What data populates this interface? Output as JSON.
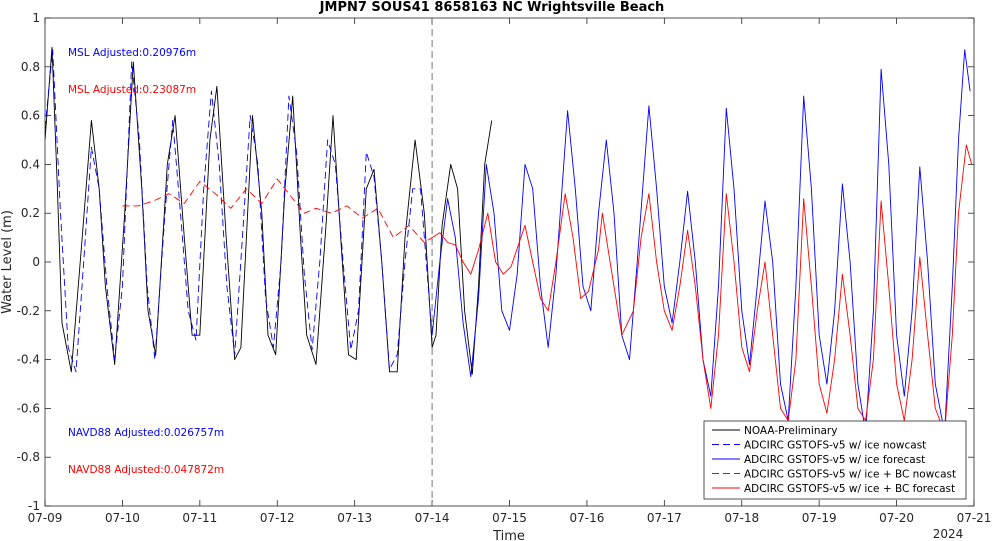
{
  "chart_data": {
    "type": "line",
    "title": "JMPN7 SOUS41 8658163 NC Wrightsville Beach",
    "xlabel": "Time",
    "ylabel": "Water Level (m)",
    "xlim": [
      0,
      12
    ],
    "ylim": [
      -1,
      1
    ],
    "x_tick_values": [
      0,
      1,
      2,
      3,
      4,
      5,
      6,
      7,
      8,
      9,
      10,
      11,
      12
    ],
    "x_tick_labels": [
      "07-09",
      "07-10",
      "07-11",
      "07-12",
      "07-13",
      "07-14",
      "07-15",
      "07-16",
      "07-17",
      "07-18",
      "07-19",
      "07-20",
      "07-21"
    ],
    "x_year_label": "2024",
    "y_ticks": [
      -1,
      -0.8,
      -0.6,
      -0.4,
      -0.2,
      0,
      0.2,
      0.4,
      0.6,
      0.8,
      1
    ],
    "y_tick_labels": [
      "-1",
      "-0.8",
      "-0.6",
      "-0.4",
      "-0.2",
      "0",
      "0.2",
      "0.4",
      "0.6",
      "0.8",
      "1"
    ],
    "nowcast_divider_x": 5,
    "annotations": [
      {
        "text": "MSL Adjusted:0.20976m",
        "color": "#0000ff"
      },
      {
        "text": "MSL Adjusted:0.23087m",
        "color": "#ff0000"
      },
      {
        "text": "NAVD88 Adjusted:0.026757m",
        "color": "#0000ff"
      },
      {
        "text": "NAVD88 Adjusted:0.047872m",
        "color": "#ff0000"
      }
    ],
    "legend_position": "bottom-right",
    "series": [
      {
        "name": "NOAA-Preliminary",
        "color": "#000000",
        "dash": "solid",
        "points": [
          [
            0,
            0.5
          ],
          [
            0.09,
            0.88
          ],
          [
            0.16,
            0.3
          ],
          [
            0.22,
            -0.25
          ],
          [
            0.34,
            -0.45
          ],
          [
            0.48,
            0.1
          ],
          [
            0.6,
            0.58
          ],
          [
            0.7,
            0.3
          ],
          [
            0.78,
            -0.1
          ],
          [
            0.9,
            -0.42
          ],
          [
            1.03,
            0.2
          ],
          [
            1.14,
            0.82
          ],
          [
            1.25,
            0.3
          ],
          [
            1.33,
            -0.2
          ],
          [
            1.43,
            -0.38
          ],
          [
            1.58,
            0.4
          ],
          [
            1.68,
            0.6
          ],
          [
            1.8,
            0.1
          ],
          [
            1.9,
            -0.3
          ],
          [
            2.0,
            -0.3
          ],
          [
            2.13,
            0.5
          ],
          [
            2.22,
            0.72
          ],
          [
            2.34,
            0.1
          ],
          [
            2.45,
            -0.4
          ],
          [
            2.53,
            -0.35
          ],
          [
            2.68,
            0.6
          ],
          [
            2.8,
            0.2
          ],
          [
            2.88,
            -0.3
          ],
          [
            2.98,
            -0.38
          ],
          [
            3.1,
            0.3
          ],
          [
            3.2,
            0.68
          ],
          [
            3.3,
            0.1
          ],
          [
            3.38,
            -0.3
          ],
          [
            3.5,
            -0.42
          ],
          [
            3.63,
            0.15
          ],
          [
            3.72,
            0.6
          ],
          [
            3.82,
            0.1
          ],
          [
            3.92,
            -0.38
          ],
          [
            4.02,
            -0.4
          ],
          [
            4.15,
            0.3
          ],
          [
            4.25,
            0.38
          ],
          [
            4.35,
            0.0
          ],
          [
            4.45,
            -0.45
          ],
          [
            4.55,
            -0.45
          ],
          [
            4.65,
            0.1
          ],
          [
            4.78,
            0.5
          ],
          [
            4.9,
            0.2
          ],
          [
            5.0,
            -0.35
          ],
          [
            5.05,
            -0.3
          ],
          [
            5.13,
            0.15
          ],
          [
            5.24,
            0.4
          ],
          [
            5.33,
            0.3
          ],
          [
            5.42,
            -0.2
          ],
          [
            5.52,
            -0.46
          ],
          [
            5.6,
            -0.1
          ],
          [
            5.68,
            0.4
          ],
          [
            5.77,
            0.58
          ]
        ]
      },
      {
        "name": "ADCIRC GSTOFS-v5 w/ ice nowcast",
        "color": "#0000ff",
        "dash": "dashed",
        "points": [
          [
            0,
            0.55
          ],
          [
            0.1,
            0.87
          ],
          [
            0.2,
            0.2
          ],
          [
            0.3,
            -0.35
          ],
          [
            0.4,
            -0.45
          ],
          [
            0.5,
            0.0
          ],
          [
            0.6,
            0.47
          ],
          [
            0.7,
            0.3
          ],
          [
            0.8,
            -0.1
          ],
          [
            0.9,
            -0.4
          ],
          [
            1.0,
            -0.1
          ],
          [
            1.12,
            0.82
          ],
          [
            1.22,
            0.5
          ],
          [
            1.32,
            -0.1
          ],
          [
            1.42,
            -0.4
          ],
          [
            1.55,
            0.2
          ],
          [
            1.65,
            0.58
          ],
          [
            1.75,
            0.2
          ],
          [
            1.85,
            -0.2
          ],
          [
            1.95,
            -0.32
          ],
          [
            2.05,
            0.3
          ],
          [
            2.15,
            0.7
          ],
          [
            2.25,
            0.4
          ],
          [
            2.35,
            -0.1
          ],
          [
            2.45,
            -0.38
          ],
          [
            2.55,
            0.1
          ],
          [
            2.65,
            0.6
          ],
          [
            2.75,
            0.4
          ],
          [
            2.85,
            -0.15
          ],
          [
            2.95,
            -0.35
          ],
          [
            3.05,
            0.0
          ],
          [
            3.15,
            0.68
          ],
          [
            3.25,
            0.45
          ],
          [
            3.35,
            -0.05
          ],
          [
            3.45,
            -0.36
          ],
          [
            3.55,
            0.0
          ],
          [
            3.65,
            0.5
          ],
          [
            3.75,
            0.4
          ],
          [
            3.85,
            0.0
          ],
          [
            3.95,
            -0.36
          ],
          [
            4.05,
            -0.2
          ],
          [
            4.15,
            0.45
          ],
          [
            4.25,
            0.35
          ],
          [
            4.35,
            0.0
          ],
          [
            4.45,
            -0.44
          ],
          [
            4.55,
            -0.38
          ],
          [
            4.65,
            0.0
          ],
          [
            4.75,
            0.3
          ],
          [
            4.85,
            0.3
          ],
          [
            4.95,
            -0.1
          ],
          [
            5.0,
            -0.3
          ]
        ]
      },
      {
        "name": "ADCIRC GSTOFS-v5 w/ ice forecast",
        "color": "#0000ff",
        "dash": "solid",
        "points": [
          [
            5.0,
            -0.3
          ],
          [
            5.1,
            0.0
          ],
          [
            5.2,
            0.26
          ],
          [
            5.3,
            0.1
          ],
          [
            5.4,
            -0.25
          ],
          [
            5.5,
            -0.47
          ],
          [
            5.6,
            -0.15
          ],
          [
            5.7,
            0.4
          ],
          [
            5.8,
            0.2
          ],
          [
            5.9,
            -0.2
          ],
          [
            6.0,
            -0.28
          ],
          [
            6.1,
            -0.05
          ],
          [
            6.2,
            0.4
          ],
          [
            6.3,
            0.3
          ],
          [
            6.4,
            -0.1
          ],
          [
            6.5,
            -0.35
          ],
          [
            6.6,
            -0.05
          ],
          [
            6.75,
            0.62
          ],
          [
            6.85,
            0.3
          ],
          [
            6.95,
            -0.1
          ],
          [
            7.05,
            -0.2
          ],
          [
            7.15,
            0.2
          ],
          [
            7.25,
            0.5
          ],
          [
            7.35,
            0.2
          ],
          [
            7.45,
            -0.3
          ],
          [
            7.55,
            -0.4
          ],
          [
            7.65,
            0.0
          ],
          [
            7.8,
            0.64
          ],
          [
            7.9,
            0.3
          ],
          [
            8.0,
            -0.1
          ],
          [
            8.1,
            -0.25
          ],
          [
            8.2,
            0.0
          ],
          [
            8.3,
            0.29
          ],
          [
            8.4,
            0.0
          ],
          [
            8.5,
            -0.4
          ],
          [
            8.6,
            -0.55
          ],
          [
            8.7,
            -0.1
          ],
          [
            8.8,
            0.63
          ],
          [
            8.9,
            0.3
          ],
          [
            9.0,
            -0.2
          ],
          [
            9.1,
            -0.42
          ],
          [
            9.2,
            -0.1
          ],
          [
            9.3,
            0.25
          ],
          [
            9.4,
            0.0
          ],
          [
            9.5,
            -0.5
          ],
          [
            9.6,
            -0.65
          ],
          [
            9.7,
            -0.1
          ],
          [
            9.8,
            0.68
          ],
          [
            9.9,
            0.3
          ],
          [
            10.0,
            -0.3
          ],
          [
            10.1,
            -0.5
          ],
          [
            10.2,
            -0.2
          ],
          [
            10.3,
            0.32
          ],
          [
            10.4,
            0.0
          ],
          [
            10.5,
            -0.5
          ],
          [
            10.6,
            -0.7
          ],
          [
            10.7,
            -0.2
          ],
          [
            10.8,
            0.79
          ],
          [
            10.9,
            0.4
          ],
          [
            11.0,
            -0.3
          ],
          [
            11.1,
            -0.55
          ],
          [
            11.2,
            -0.2
          ],
          [
            11.3,
            0.39
          ],
          [
            11.4,
            0.0
          ],
          [
            11.5,
            -0.5
          ],
          [
            11.62,
            -0.7
          ],
          [
            11.72,
            -0.1
          ],
          [
            11.8,
            0.5
          ],
          [
            11.88,
            0.87
          ],
          [
            11.95,
            0.7
          ]
        ]
      },
      {
        "name": "ADCIRC GSTOFS-v5 w/ ice + BC nowcast",
        "color": "#ff0000",
        "dash": "dashed",
        "points": [
          [
            1.0,
            0.23
          ],
          [
            1.2,
            0.23
          ],
          [
            1.4,
            0.25
          ],
          [
            1.6,
            0.28
          ],
          [
            1.8,
            0.24
          ],
          [
            2.0,
            0.33
          ],
          [
            2.2,
            0.28
          ],
          [
            2.4,
            0.22
          ],
          [
            2.6,
            0.3
          ],
          [
            2.8,
            0.24
          ],
          [
            3.0,
            0.34
          ],
          [
            3.2,
            0.26
          ],
          [
            3.35,
            0.2
          ],
          [
            3.5,
            0.22
          ],
          [
            3.7,
            0.2
          ],
          [
            3.9,
            0.23
          ],
          [
            4.1,
            0.18
          ],
          [
            4.3,
            0.22
          ],
          [
            4.5,
            0.1
          ],
          [
            4.7,
            0.15
          ],
          [
            4.9,
            0.08
          ],
          [
            5.0,
            0.1
          ]
        ]
      },
      {
        "name": "ADCIRC GSTOFS-v5 w/ ice + BC forecast",
        "color": "#ff0000",
        "dash": "solid",
        "points": [
          [
            5.0,
            0.1
          ],
          [
            5.1,
            0.12
          ],
          [
            5.2,
            0.08
          ],
          [
            5.3,
            0.07
          ],
          [
            5.4,
            0.0
          ],
          [
            5.5,
            -0.05
          ],
          [
            5.6,
            0.05
          ],
          [
            5.72,
            0.2
          ],
          [
            5.82,
            0.0
          ],
          [
            5.92,
            -0.05
          ],
          [
            6.02,
            -0.02
          ],
          [
            6.2,
            0.15
          ],
          [
            6.3,
            0.0
          ],
          [
            6.4,
            -0.15
          ],
          [
            6.5,
            -0.2
          ],
          [
            6.6,
            0.0
          ],
          [
            6.72,
            0.28
          ],
          [
            6.82,
            0.1
          ],
          [
            6.92,
            -0.15
          ],
          [
            7.02,
            -0.12
          ],
          [
            7.15,
            0.05
          ],
          [
            7.2,
            0.2
          ],
          [
            7.3,
            0.0
          ],
          [
            7.45,
            -0.3
          ],
          [
            7.6,
            -0.2
          ],
          [
            7.7,
            0.1
          ],
          [
            7.8,
            0.28
          ],
          [
            7.9,
            0.0
          ],
          [
            8.0,
            -0.2
          ],
          [
            8.1,
            -0.28
          ],
          [
            8.2,
            -0.1
          ],
          [
            8.3,
            0.13
          ],
          [
            8.4,
            -0.1
          ],
          [
            8.5,
            -0.4
          ],
          [
            8.6,
            -0.6
          ],
          [
            8.7,
            -0.3
          ],
          [
            8.8,
            0.28
          ],
          [
            8.9,
            0.0
          ],
          [
            9.0,
            -0.35
          ],
          [
            9.1,
            -0.45
          ],
          [
            9.2,
            -0.2
          ],
          [
            9.3,
            0.0
          ],
          [
            9.4,
            -0.3
          ],
          [
            9.5,
            -0.6
          ],
          [
            9.6,
            -0.65
          ],
          [
            9.7,
            -0.4
          ],
          [
            9.8,
            0.26
          ],
          [
            9.9,
            -0.1
          ],
          [
            10.0,
            -0.5
          ],
          [
            10.1,
            -0.62
          ],
          [
            10.2,
            -0.4
          ],
          [
            10.3,
            -0.05
          ],
          [
            10.4,
            -0.3
          ],
          [
            10.5,
            -0.6
          ],
          [
            10.6,
            -0.65
          ],
          [
            10.7,
            -0.4
          ],
          [
            10.8,
            0.25
          ],
          [
            10.9,
            -0.1
          ],
          [
            11.0,
            -0.5
          ],
          [
            11.1,
            -0.65
          ],
          [
            11.2,
            -0.4
          ],
          [
            11.3,
            0.02
          ],
          [
            11.4,
            -0.3
          ],
          [
            11.5,
            -0.6
          ],
          [
            11.62,
            -0.7
          ],
          [
            11.72,
            -0.3
          ],
          [
            11.8,
            0.2
          ],
          [
            11.9,
            0.48
          ],
          [
            11.97,
            0.4
          ]
        ]
      }
    ]
  }
}
